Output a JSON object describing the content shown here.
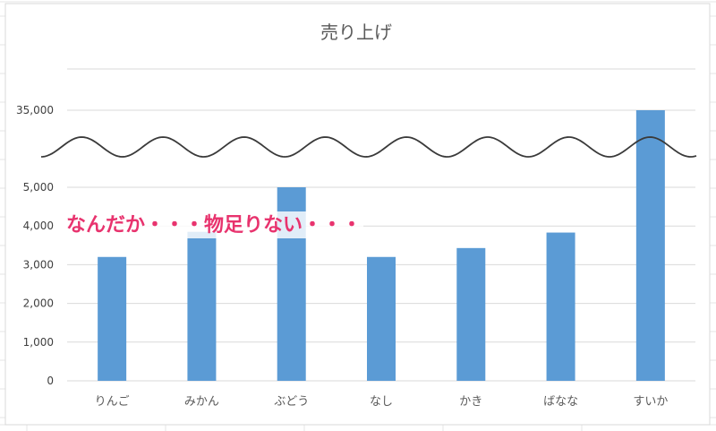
{
  "chart_data": {
    "type": "bar",
    "title": "売り上げ",
    "categories": [
      "りんご",
      "みかん",
      "ぶどう",
      "なし",
      "かき",
      "ばなな",
      "すいか"
    ],
    "values": [
      3200,
      3850,
      5000,
      3200,
      3430,
      3830,
      35000
    ],
    "ylim": [
      0,
      5000
    ],
    "yticks": [
      0,
      1000,
      2000,
      3000,
      4000,
      5000
    ],
    "ytick_labels": [
      "0",
      "1,000",
      "2,000",
      "3,000",
      "4,000",
      "5,000"
    ],
    "break_tick_value": 35000,
    "break_tick_label": "35,000",
    "axis_break": true,
    "grid": true,
    "bar_color": "#5b9bd5",
    "annotation": "なんだか・・・物足りない・・・",
    "annotation_color": "#e8336e"
  }
}
